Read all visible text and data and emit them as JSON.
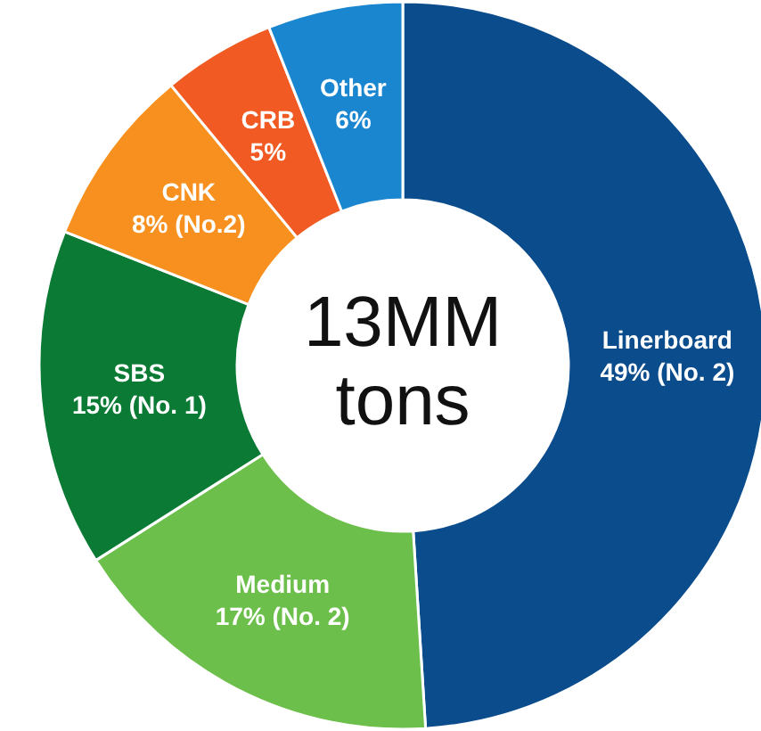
{
  "chart_data": {
    "type": "donut",
    "categories": [
      "Linerboard",
      "Medium",
      "SBS",
      "CNK",
      "CRB",
      "Other"
    ],
    "values": [
      49,
      17,
      15,
      8,
      5,
      6
    ],
    "value_labels": [
      "49% (No. 2)",
      "17% (No. 2)",
      "15% (No. 1)",
      "8% (No.2)",
      "5%",
      "6%"
    ],
    "colors": [
      "#0b4c8c",
      "#6dbf4b",
      "#0a7a34",
      "#f7901e",
      "#f15a22",
      "#1a86cf"
    ],
    "annotations": [
      "13MM tons"
    ]
  }
}
